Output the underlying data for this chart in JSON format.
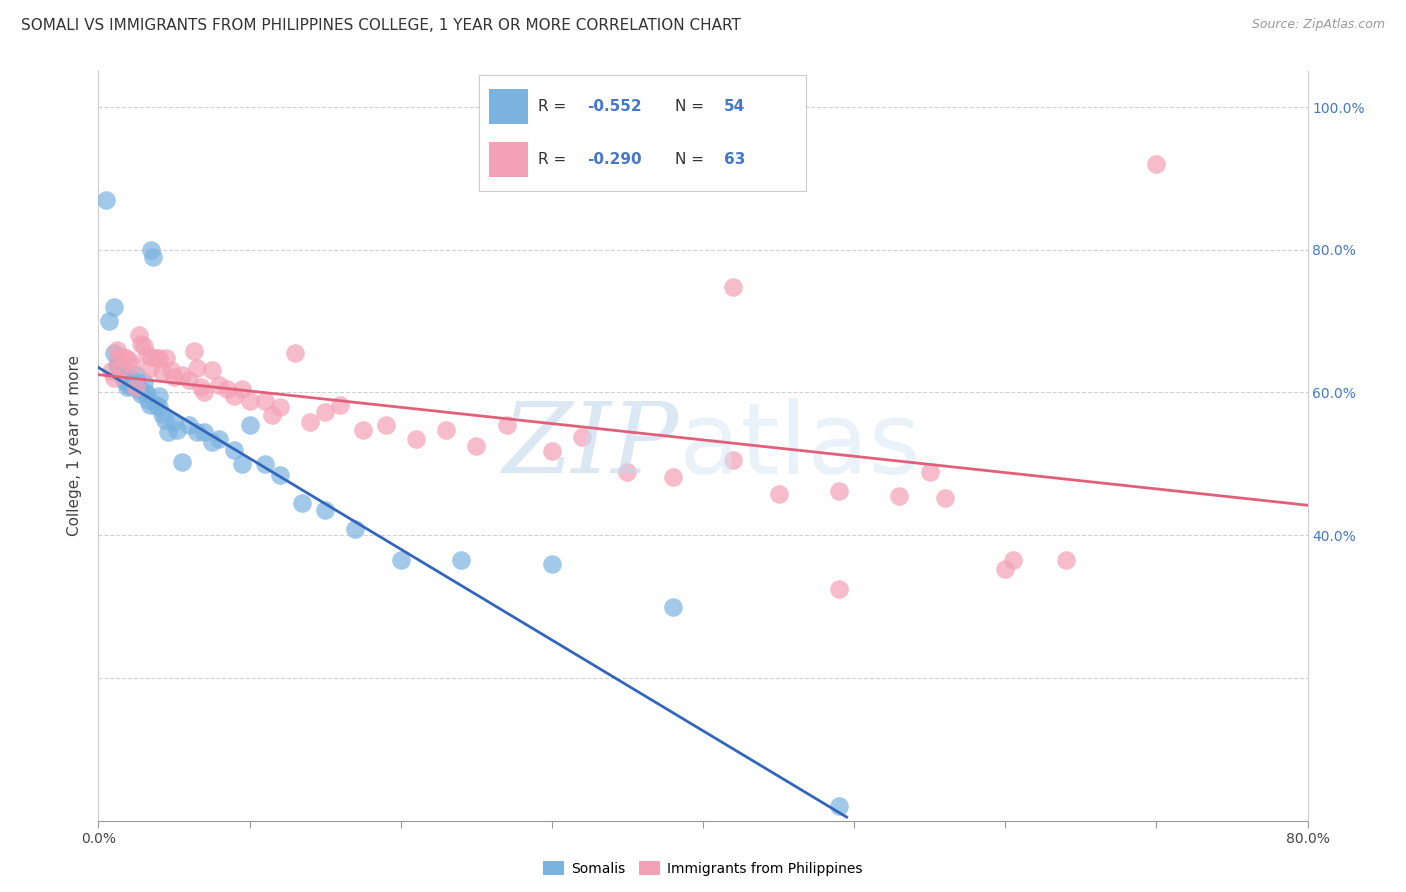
{
  "title": "SOMALI VS IMMIGRANTS FROM PHILIPPINES COLLEGE, 1 YEAR OR MORE CORRELATION CHART",
  "source": "Source: ZipAtlas.com",
  "ylabel": "College, 1 year or more",
  "xlim": [
    0.0,
    0.8
  ],
  "ylim": [
    0.0,
    1.05
  ],
  "ytick_labels_right": [
    "100.0%",
    "80.0%",
    "60.0%",
    "40.0%"
  ],
  "ytick_positions_right": [
    1.0,
    0.8,
    0.6,
    0.4
  ],
  "legend_r1": "R = -0.552",
  "legend_n1": "N = 54",
  "legend_r2": "R = -0.290",
  "legend_n2": "N = 63",
  "somali_color": "#7bb3e0",
  "philippines_color": "#f4a0b5",
  "regression_blue": "#3366bb",
  "regression_pink": "#e0607a",
  "background_color": "#ffffff",
  "grid_color": "#cccccc",
  "somali_x": [
    0.005,
    0.007,
    0.01,
    0.01,
    0.012,
    0.013,
    0.014,
    0.015,
    0.016,
    0.017,
    0.018,
    0.019,
    0.02,
    0.022,
    0.023,
    0.025,
    0.025,
    0.026,
    0.027,
    0.028,
    0.03,
    0.031,
    0.032,
    0.033,
    0.034,
    0.035,
    0.036,
    0.038,
    0.04,
    0.04,
    0.042,
    0.044,
    0.046,
    0.05,
    0.052,
    0.055,
    0.06,
    0.065,
    0.07,
    0.075,
    0.08,
    0.09,
    0.095,
    0.1,
    0.11,
    0.12,
    0.135,
    0.15,
    0.17,
    0.2,
    0.24,
    0.3,
    0.38,
    0.49
  ],
  "somali_y": [
    0.87,
    0.7,
    0.72,
    0.655,
    0.638,
    0.64,
    0.628,
    0.625,
    0.63,
    0.618,
    0.615,
    0.608,
    0.61,
    0.618,
    0.608,
    0.625,
    0.612,
    0.608,
    0.603,
    0.598,
    0.615,
    0.6,
    0.598,
    0.59,
    0.582,
    0.8,
    0.79,
    0.582,
    0.595,
    0.58,
    0.57,
    0.562,
    0.545,
    0.558,
    0.548,
    0.502,
    0.555,
    0.545,
    0.545,
    0.53,
    0.535,
    0.52,
    0.5,
    0.555,
    0.5,
    0.485,
    0.445,
    0.435,
    0.408,
    0.365,
    0.365,
    0.36,
    0.3,
    0.02
  ],
  "phil_x": [
    0.008,
    0.01,
    0.012,
    0.013,
    0.015,
    0.016,
    0.018,
    0.02,
    0.022,
    0.025,
    0.027,
    0.028,
    0.03,
    0.032,
    0.034,
    0.035,
    0.038,
    0.04,
    0.042,
    0.045,
    0.048,
    0.05,
    0.055,
    0.06,
    0.063,
    0.065,
    0.068,
    0.07,
    0.075,
    0.08,
    0.085,
    0.09,
    0.095,
    0.1,
    0.11,
    0.115,
    0.12,
    0.13,
    0.14,
    0.15,
    0.16,
    0.175,
    0.19,
    0.21,
    0.23,
    0.25,
    0.27,
    0.3,
    0.32,
    0.35,
    0.38,
    0.42,
    0.45,
    0.49,
    0.53,
    0.56,
    0.6,
    0.42,
    0.49,
    0.55,
    0.605,
    0.64,
    0.7
  ],
  "phil_y": [
    0.63,
    0.62,
    0.66,
    0.648,
    0.635,
    0.65,
    0.648,
    0.645,
    0.638,
    0.608,
    0.68,
    0.668,
    0.665,
    0.652,
    0.635,
    0.65,
    0.648,
    0.648,
    0.628,
    0.648,
    0.632,
    0.622,
    0.625,
    0.618,
    0.658,
    0.635,
    0.608,
    0.6,
    0.632,
    0.61,
    0.605,
    0.595,
    0.605,
    0.588,
    0.588,
    0.568,
    0.58,
    0.655,
    0.558,
    0.572,
    0.582,
    0.548,
    0.555,
    0.535,
    0.548,
    0.525,
    0.555,
    0.518,
    0.538,
    0.488,
    0.482,
    0.505,
    0.458,
    0.462,
    0.455,
    0.452,
    0.352,
    0.748,
    0.325,
    0.488,
    0.365,
    0.365,
    0.92
  ],
  "title_fontsize": 11,
  "axis_label_fontsize": 11,
  "tick_fontsize": 10,
  "legend_fontsize": 12,
  "source_fontsize": 9
}
